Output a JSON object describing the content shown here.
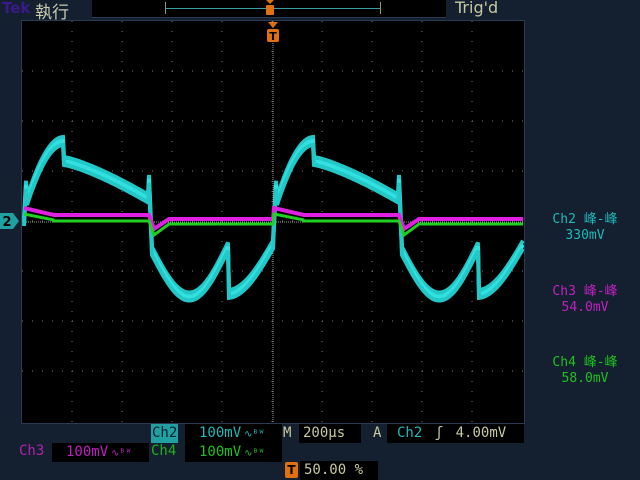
{
  "header": {
    "brand": "Tek",
    "run_state": "執行",
    "trigger_status": "Trig'd"
  },
  "markers": {
    "trigger_position": "T",
    "ch2_ground": "2"
  },
  "colors": {
    "ch2": "#33d6d6",
    "ch3": "#e020e0",
    "ch4": "#20d020",
    "trigger": "#e07010",
    "text": "#c8c8a0"
  },
  "channels": [
    {
      "label": "Ch2",
      "scale": "100mV",
      "bw_icon": "bandwidth-limit-icon",
      "color": "#33d6d6"
    },
    {
      "label": "Ch3",
      "scale": "100mV",
      "bw_icon": "bandwidth-limit-icon",
      "color": "#c020c0"
    },
    {
      "label": "Ch4",
      "scale": "100mV",
      "bw_icon": "bandwidth-limit-icon",
      "color": "#20c020"
    }
  ],
  "timebase": {
    "label": "M",
    "value": "200µs"
  },
  "trigger": {
    "mode": "A",
    "source": "Ch2",
    "slope_icon": "rising-edge-icon",
    "level": "4.00mV",
    "position_label": "T",
    "position": "50.00 %"
  },
  "measurements": [
    {
      "title": "Ch2 峰-峰",
      "value": "330mV"
    },
    {
      "title": "Ch3 峰-峰",
      "value": "54.0mV"
    },
    {
      "title": "Ch4 峰-峰",
      "value": "58.0mV"
    }
  ]
}
